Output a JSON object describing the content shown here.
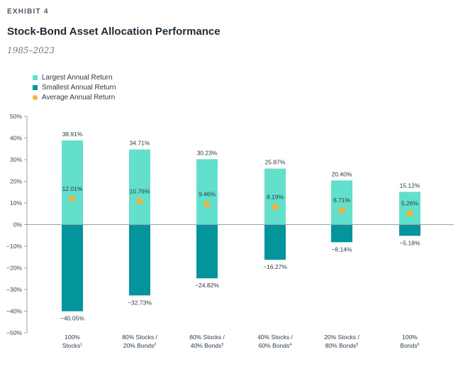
{
  "header": {
    "exhibit": "EXHIBIT 4",
    "title": "Stock-Bond Asset Allocation Performance",
    "subtitle": "1985–2023"
  },
  "legend": [
    {
      "label": "Largest Annual Return",
      "color": "#63e0cb",
      "shape": "square"
    },
    {
      "label": "Smallest Annual Return",
      "color": "#03959b",
      "shape": "square"
    },
    {
      "label": "Average Annual Return",
      "color": "#f2b23a",
      "shape": "circle"
    }
  ],
  "chart_data": {
    "type": "bar",
    "categories": [
      {
        "line1": "100%",
        "line2": "Stocks",
        "sup": "1"
      },
      {
        "line1": "80% Stocks /",
        "line2": "20% Bonds",
        "sup": "2"
      },
      {
        "line1": "60% Stocks /",
        "line2": "40% Bonds",
        "sup": "3"
      },
      {
        "line1": "40% Stocks /",
        "line2": "60% Bonds",
        "sup": "4"
      },
      {
        "line1": "20% Stocks /",
        "line2": "80% Bonds",
        "sup": "5"
      },
      {
        "line1": "100%",
        "line2": "Bonds",
        "sup": "6"
      }
    ],
    "series": [
      {
        "name": "Largest Annual Return",
        "values": [
          38.91,
          34.71,
          30.23,
          25.87,
          20.4,
          15.12
        ],
        "labels": [
          "38.91%",
          "34.71%",
          "30.23%",
          "25.87%",
          "20.40%",
          "15.12%"
        ]
      },
      {
        "name": "Smallest Annual Return",
        "values": [
          -40.05,
          -32.73,
          -24.82,
          -16.27,
          -8.14,
          -5.18
        ],
        "labels": [
          "−40.05%",
          "−32.73%",
          "−24.82%",
          "−16.27%",
          "−8.14%",
          "−5.18%"
        ]
      },
      {
        "name": "Average Annual Return",
        "values": [
          12.01,
          10.76,
          9.46,
          8.19,
          6.71,
          5.26
        ],
        "labels": [
          "12.01%",
          "10.76%",
          "9.46%",
          "8.19%",
          "6.71%",
          "5.26%"
        ]
      }
    ],
    "yticks": [
      50,
      40,
      30,
      20,
      10,
      0,
      -10,
      -20,
      -30,
      -40,
      -50
    ],
    "ytick_labels": [
      "50%",
      "40%",
      "30%",
      "20%",
      "10%",
      "0%",
      "−10%",
      "−20%",
      "−30%",
      "−40%",
      "−50%"
    ],
    "ylim": [
      -50,
      50
    ],
    "grid": false
  }
}
